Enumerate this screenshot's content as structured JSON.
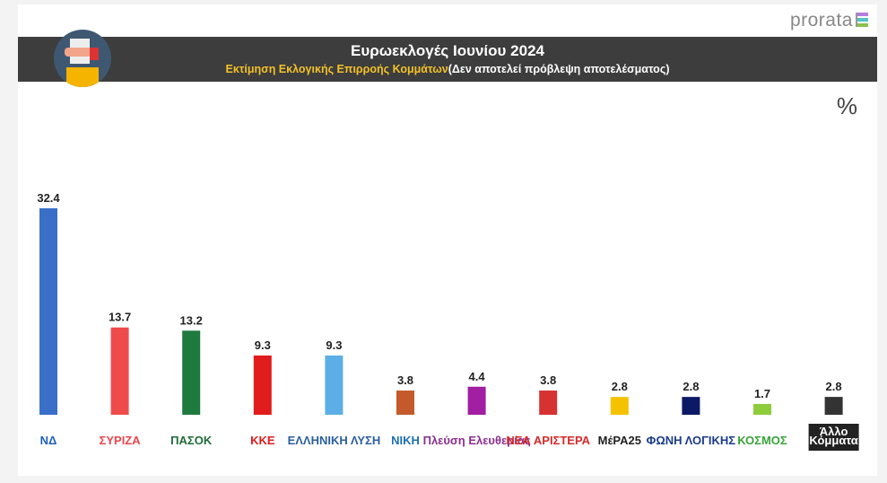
{
  "header": {
    "brand": "prorata",
    "title": "Ευρωεκλογές Ιουνίου 2024",
    "subtitle_highlight": "Εκτίμηση Εκλογικής Επιρροής Κομμάτων",
    "subtitle_rest": "(Δεν αποτελεί πρόβλεψη αποτελέσματος)",
    "unit": "%"
  },
  "chart_data": {
    "type": "bar",
    "title": "Ευρωεκλογές Ιουνίου 2024",
    "subtitle": "Εκτίμηση Εκλογικής Επιρροής Κομμάτων (Δεν αποτελεί πρόβλεψη αποτελέσματος)",
    "ylabel": "%",
    "xlabel": "",
    "ylim": [
      0,
      34
    ],
    "grid": false,
    "categories": [
      "ΝΔ",
      "ΣΥΡΙΖΑ",
      "ΠΑΣΟΚ",
      "ΚΚΕ",
      "ΕΛΛΗΝΙΚΗ ΛΥΣΗ",
      "ΝΙΚΗ",
      "Πλεύση Ελευθερίας",
      "ΝΕΑ ΑΡΙΣΤΕΡΑ",
      "ΜέΡΑ25",
      "ΦΩΝΗ ΛΟΓΙΚΗΣ",
      "ΚΟΣΜΟΣ",
      "Άλλο Κόμματα"
    ],
    "values": [
      32.4,
      13.7,
      13.2,
      9.3,
      9.3,
      3.8,
      4.4,
      3.8,
      2.8,
      2.8,
      1.7,
      2.8
    ],
    "colors": [
      "#3a6fc9",
      "#f04b4b",
      "#1e7a3e",
      "#e01c1c",
      "#5cafe6",
      "#c45a2b",
      "#a21ea3",
      "#d63232",
      "#f5c200",
      "#0c1a66",
      "#8dcc3b",
      "#333333"
    ],
    "logo_colors": [
      "#1f5fbf",
      "#e8474c",
      "#1e6b3a",
      "#e01c1c",
      "#2c5f9e",
      "#1e6fb0",
      "#8b2f8f",
      "#d62a2a",
      "#222222",
      "#1b3c8c",
      "#3aa33a",
      "#ffffff"
    ]
  }
}
